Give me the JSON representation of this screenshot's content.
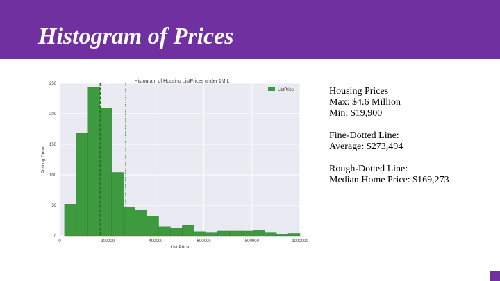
{
  "slide": {
    "title": "Histogram of Prices",
    "accent_color": "#7030a0"
  },
  "notes": {
    "group1": [
      "Housing Prices",
      "Max: $4.6 Million",
      "Min: $19,900"
    ],
    "group2": [
      "Fine-Dotted Line:",
      "Average: $273,494"
    ],
    "group3": [
      "Rough-Dotted Line:",
      "Median Home Price: $169,273"
    ]
  },
  "chart_data": {
    "type": "bar",
    "title": "Histogram of Housing ListPrices under 1MIL",
    "xlabel": "List Price",
    "ylabel": "Posting Count",
    "xlim": [
      0,
      1000000
    ],
    "ylim": [
      0,
      250
    ],
    "xticks": [
      0,
      200000,
      400000,
      600000,
      800000,
      1000000
    ],
    "yticks": [
      0,
      50,
      100,
      150,
      200,
      250
    ],
    "grid": true,
    "legend_position": "top-right",
    "bar_color": "#3e9a3e",
    "series": [
      {
        "name": "ListPrice",
        "bin_edges": [
          19900,
          68905,
          117910,
          166915,
          215920,
          264925,
          313930,
          362935,
          411940,
          460945,
          509950,
          558955,
          607960,
          656965,
          705970,
          754975,
          803980,
          852985,
          901990,
          950995,
          1000000
        ],
        "values": [
          52,
          168,
          243,
          210,
          104,
          47,
          43,
          32,
          15,
          13,
          17,
          7,
          5,
          8,
          8,
          8,
          10,
          5,
          3,
          4
        ]
      }
    ],
    "vlines": [
      {
        "label": "Average",
        "x": 273494,
        "style": "fine-dotted"
      },
      {
        "label": "Median",
        "x": 169273,
        "style": "rough-dotted"
      }
    ]
  }
}
